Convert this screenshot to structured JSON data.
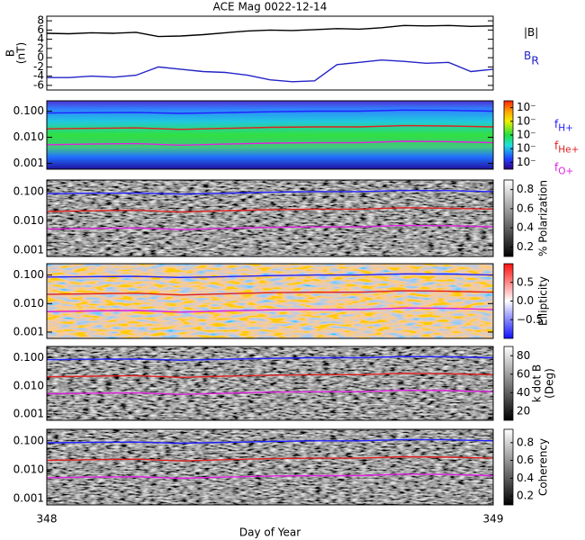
{
  "chart_data": [
    {
      "type": "line",
      "title": "ACE Mag 0022-12-14",
      "y_label": [
        "B",
        "(nT)"
      ],
      "x": [
        348,
        348.05,
        348.1,
        348.15,
        348.2,
        348.25,
        348.3,
        348.35,
        348.4,
        348.45,
        348.5,
        348.55,
        348.6,
        348.65,
        348.7,
        348.75,
        348.8,
        348.85,
        348.9,
        348.95,
        349
      ],
      "xlim": [
        348,
        349
      ],
      "ylim": [
        -7,
        9
      ],
      "yticks": [
        -6,
        -4,
        -2,
        0,
        2,
        4,
        6,
        8
      ],
      "series": [
        {
          "name": "|B|",
          "color": "#000000",
          "values": [
            5.3,
            5.2,
            5.4,
            5.3,
            5.5,
            4.6,
            4.7,
            5.0,
            5.4,
            5.8,
            6.0,
            5.9,
            6.1,
            6.3,
            6.2,
            6.5,
            7.0,
            6.9,
            7.0,
            6.8,
            6.9
          ]
        },
        {
          "name": "B",
          "name_sub": "R",
          "color": "#2323c8",
          "values": [
            -4.3,
            -4.3,
            -4.0,
            -4.2,
            -3.8,
            -2.0,
            -2.5,
            -3.0,
            -3.2,
            -3.8,
            -4.8,
            -5.2,
            -5.0,
            -1.5,
            -1.0,
            -0.5,
            -0.8,
            -1.2,
            -1.0,
            -3.0,
            -2.5
          ]
        }
      ]
    },
    {
      "type": "spectrogram",
      "colormap": "rainbow",
      "log_y": true,
      "x": [
        348,
        348.1,
        348.2,
        348.3,
        348.4,
        348.5,
        348.6,
        348.7,
        348.8,
        348.9,
        349
      ],
      "xlim": [
        348,
        349
      ],
      "ylim": [
        0.0006,
        0.25
      ],
      "yticks": [
        0.001,
        {
          "value": 0.01,
          "label": "0.010"
        },
        {
          "value": 0.1,
          "label": "0.100"
        }
      ],
      "clim": [
        0.5,
        5.5
      ],
      "cticks": [
        {
          "value": 1,
          "label": "10⁻"
        },
        {
          "value": 2,
          "label": "10⁻"
        },
        {
          "value": 3,
          "label": "10⁻"
        },
        {
          "value": 4,
          "label": "10⁻"
        },
        {
          "value": 5,
          "label": "10⁻"
        }
      ],
      "series": [
        {
          "name": "f",
          "name_sub": "H+",
          "color": "#2020ff",
          "values": [
            0.085,
            0.088,
            0.09,
            0.082,
            0.088,
            0.095,
            0.1,
            0.1,
            0.11,
            0.108,
            0.1
          ]
        },
        {
          "name": "f",
          "name_sub": "He+",
          "color": "#e02020",
          "values": [
            0.021,
            0.022,
            0.023,
            0.02,
            0.022,
            0.024,
            0.025,
            0.025,
            0.028,
            0.027,
            0.025
          ]
        },
        {
          "name": "f",
          "name_sub": "O+",
          "color": "#e020e0",
          "values": [
            0.0052,
            0.0055,
            0.0057,
            0.005,
            0.0055,
            0.006,
            0.0062,
            0.0062,
            0.007,
            0.0068,
            0.0062
          ]
        }
      ]
    },
    {
      "type": "spectrogram",
      "colormap": "gray",
      "log_y": true,
      "x": [
        348,
        348.1,
        348.2,
        348.3,
        348.4,
        348.5,
        348.6,
        348.7,
        348.8,
        348.9,
        349
      ],
      "xlim": [
        348,
        349
      ],
      "ylim": [
        0.0006,
        0.25
      ],
      "yticks": [
        0.001,
        {
          "value": 0.01,
          "label": "0.010"
        },
        {
          "value": 0.1,
          "label": "0.100"
        }
      ],
      "clim": [
        0.1,
        0.9
      ],
      "cticks": [
        0.2,
        0.4,
        0.6,
        0.8
      ],
      "colorbar_label": [
        "% Polarization"
      ],
      "series": [
        {
          "color": "#2020ff",
          "values": [
            0.085,
            0.088,
            0.09,
            0.082,
            0.088,
            0.095,
            0.1,
            0.1,
            0.11,
            0.108,
            0.1
          ]
        },
        {
          "color": "#e02020",
          "values": [
            0.021,
            0.022,
            0.023,
            0.02,
            0.022,
            0.024,
            0.025,
            0.025,
            0.028,
            0.027,
            0.025
          ]
        },
        {
          "color": "#e020e0",
          "values": [
            0.0052,
            0.0055,
            0.0057,
            0.005,
            0.0055,
            0.006,
            0.0062,
            0.0062,
            0.007,
            0.0068,
            0.0062
          ]
        }
      ]
    },
    {
      "type": "spectrogram",
      "colormap": "bwr",
      "log_y": true,
      "x": [
        348,
        348.1,
        348.2,
        348.3,
        348.4,
        348.5,
        348.6,
        348.7,
        348.8,
        348.9,
        349
      ],
      "xlim": [
        348,
        349
      ],
      "ylim": [
        0.0006,
        0.25
      ],
      "yticks": [
        0.001,
        {
          "value": 0.01,
          "label": "0.010"
        },
        {
          "value": 0.1,
          "label": "0.100"
        }
      ],
      "clim": [
        -1,
        1
      ],
      "cticks": [
        {
          "value": -0.5,
          "label": "−0.5"
        },
        {
          "value": 0,
          "label": "0.0"
        },
        0.5
      ],
      "colorbar_label": [
        "Ellipticity"
      ],
      "series": [
        {
          "color": "#2020ff",
          "values": [
            0.085,
            0.088,
            0.09,
            0.082,
            0.088,
            0.095,
            0.1,
            0.1,
            0.11,
            0.108,
            0.1
          ]
        },
        {
          "color": "#e02020",
          "values": [
            0.021,
            0.022,
            0.023,
            0.02,
            0.022,
            0.024,
            0.025,
            0.025,
            0.028,
            0.027,
            0.025
          ]
        },
        {
          "color": "#e020e0",
          "values": [
            0.0052,
            0.0055,
            0.0057,
            0.005,
            0.0055,
            0.006,
            0.0062,
            0.0062,
            0.007,
            0.0068,
            0.0062
          ]
        }
      ]
    },
    {
      "type": "spectrogram",
      "colormap": "gray",
      "log_y": true,
      "x": [
        348,
        348.1,
        348.2,
        348.3,
        348.4,
        348.5,
        348.6,
        348.7,
        348.8,
        348.9,
        349
      ],
      "xlim": [
        348,
        349
      ],
      "ylim": [
        0.0006,
        0.25
      ],
      "yticks": [
        0.001,
        {
          "value": 0.01,
          "label": "0.010"
        },
        {
          "value": 0.1,
          "label": "0.100"
        }
      ],
      "clim": [
        10,
        90
      ],
      "cticks": [
        20,
        40,
        60,
        80
      ],
      "colorbar_label": [
        "k dot B",
        "(Deg)"
      ],
      "series": [
        {
          "color": "#2020ff",
          "values": [
            0.085,
            0.088,
            0.09,
            0.082,
            0.088,
            0.095,
            0.1,
            0.1,
            0.11,
            0.108,
            0.1
          ]
        },
        {
          "color": "#e02020",
          "values": [
            0.021,
            0.022,
            0.023,
            0.02,
            0.022,
            0.024,
            0.025,
            0.025,
            0.028,
            0.027,
            0.025
          ]
        },
        {
          "color": "#e020e0",
          "values": [
            0.0052,
            0.0055,
            0.0057,
            0.005,
            0.0055,
            0.006,
            0.0062,
            0.0062,
            0.007,
            0.0068,
            0.0062
          ]
        }
      ]
    },
    {
      "type": "spectrogram",
      "colormap": "gray",
      "log_y": true,
      "x": [
        348,
        348.1,
        348.2,
        348.3,
        348.4,
        348.5,
        348.6,
        348.7,
        348.8,
        348.9,
        349
      ],
      "xlim": [
        348,
        349
      ],
      "xticks": [
        348,
        349
      ],
      "x_label": "Day of Year",
      "ylim": [
        0.0006,
        0.25
      ],
      "yticks": [
        0.001,
        {
          "value": 0.01,
          "label": "0.010"
        },
        {
          "value": 0.1,
          "label": "0.100"
        }
      ],
      "clim": [
        0.1,
        0.95
      ],
      "cticks": [
        0.2,
        0.4,
        0.6,
        0.8
      ],
      "colorbar_label": [
        "Coherency"
      ],
      "series": [
        {
          "color": "#2020ff",
          "values": [
            0.085,
            0.088,
            0.09,
            0.082,
            0.088,
            0.095,
            0.1,
            0.1,
            0.11,
            0.108,
            0.1
          ]
        },
        {
          "color": "#e02020",
          "values": [
            0.021,
            0.022,
            0.023,
            0.02,
            0.022,
            0.024,
            0.025,
            0.025,
            0.028,
            0.027,
            0.025
          ]
        },
        {
          "color": "#e020e0",
          "values": [
            0.0052,
            0.0055,
            0.0057,
            0.005,
            0.0055,
            0.006,
            0.0062,
            0.0062,
            0.007,
            0.0068,
            0.0062
          ]
        }
      ]
    }
  ]
}
